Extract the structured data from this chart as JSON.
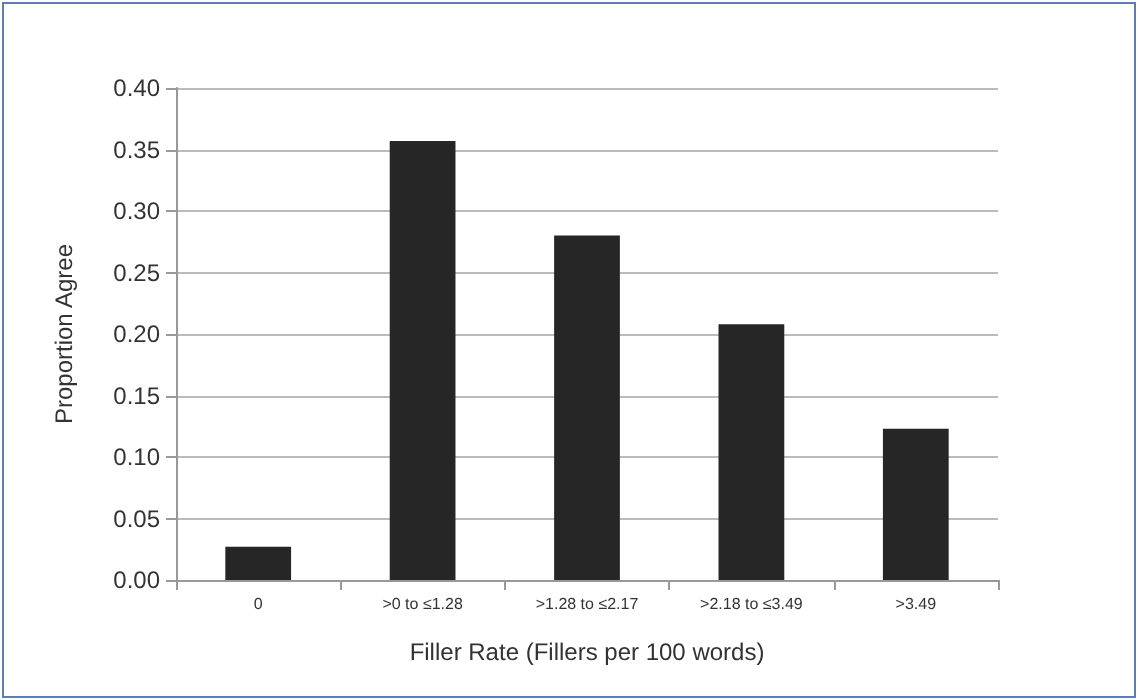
{
  "chart_data": {
    "type": "bar",
    "xlabel": "Filler Rate (Fillers per 100 words)",
    "ylabel": "Proportion Agree",
    "categories": [
      "0",
      ">0 to ≤1.28",
      ">1.28 to ≤2.17",
      ">2.18 to ≤3.49",
      ">3.49"
    ],
    "values": [
      0.027,
      0.357,
      0.28,
      0.208,
      0.123
    ],
    "color": "#262626",
    "ylim": [
      0,
      0.4
    ],
    "yticks": [
      {
        "value": 0,
        "label": "0.00"
      },
      0.05,
      {
        "value": 0.1,
        "label": "0.10"
      },
      0.15,
      {
        "value": 0.2,
        "label": "0.20"
      },
      0.25,
      {
        "value": 0.3,
        "label": "0.30"
      },
      0.35,
      {
        "value": 0.4,
        "label": "0.40"
      }
    ],
    "grid": "y"
  }
}
